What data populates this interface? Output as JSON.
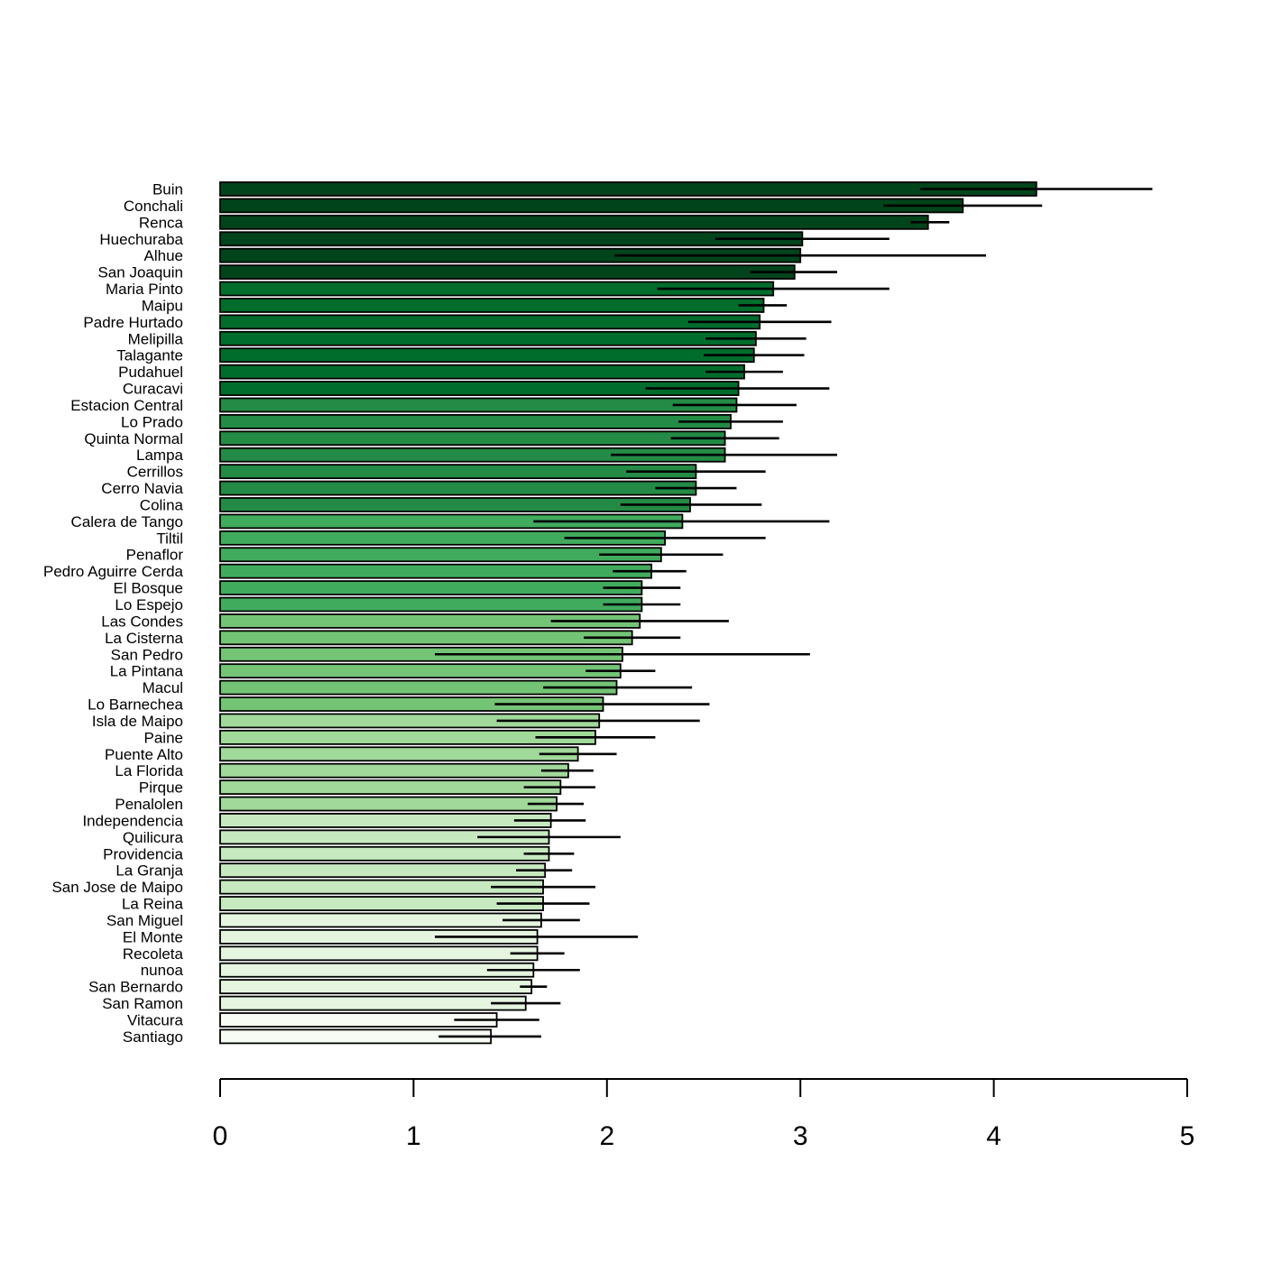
{
  "chart_data": {
    "type": "bar",
    "orientation": "horizontal",
    "title": "",
    "xlabel": "",
    "ylabel": "",
    "xlim": [
      0,
      5
    ],
    "x_ticks": [
      "0",
      "1",
      "2",
      "3",
      "4",
      "5"
    ],
    "grid": false,
    "legend": "none",
    "error_bars": true,
    "categories": [
      "Buin",
      "Conchali",
      "Renca",
      "Huechuraba",
      "Alhue",
      "San Joaquin",
      "Maria Pinto",
      "Maipu",
      "Padre Hurtado",
      "Melipilla",
      "Talagante",
      "Pudahuel",
      "Curacavi",
      "Estacion Central",
      "Lo Prado",
      "Quinta Normal",
      "Lampa",
      "Cerrillos",
      "Cerro Navia",
      "Colina",
      "Calera de Tango",
      "Tiltil",
      "Penaflor",
      "Pedro Aguirre Cerda",
      "El Bosque",
      "Lo Espejo",
      "Las Condes",
      "La Cisterna",
      "San Pedro",
      "La Pintana",
      "Macul",
      "Lo Barnechea",
      "Isla de Maipo",
      "Paine",
      "Puente Alto",
      "La Florida",
      "Pirque",
      "Penalolen",
      "Independencia",
      "Quilicura",
      "Providencia",
      "La Granja",
      "San Jose de Maipo",
      "La Reina",
      "San Miguel",
      "El Monte",
      "Recoleta",
      "nunoa",
      "San Bernardo",
      "San Ramon",
      "Vitacura",
      "Santiago"
    ],
    "values": [
      4.22,
      3.84,
      3.66,
      3.01,
      3.0,
      2.97,
      2.86,
      2.81,
      2.79,
      2.77,
      2.76,
      2.71,
      2.68,
      2.67,
      2.64,
      2.61,
      2.61,
      2.46,
      2.46,
      2.43,
      2.39,
      2.3,
      2.28,
      2.23,
      2.18,
      2.18,
      2.17,
      2.13,
      2.08,
      2.07,
      2.05,
      1.98,
      1.96,
      1.94,
      1.85,
      1.8,
      1.76,
      1.74,
      1.71,
      1.7,
      1.7,
      1.68,
      1.67,
      1.67,
      1.66,
      1.64,
      1.64,
      1.62,
      1.61,
      1.58,
      1.43,
      1.4
    ],
    "ci_low": [
      3.62,
      3.43,
      3.57,
      2.56,
      2.04,
      2.74,
      2.26,
      2.68,
      2.42,
      2.51,
      2.5,
      2.51,
      2.2,
      2.34,
      2.37,
      2.33,
      2.02,
      2.1,
      2.25,
      2.07,
      1.62,
      1.78,
      1.96,
      2.03,
      1.98,
      1.98,
      1.71,
      1.88,
      1.11,
      1.89,
      1.67,
      1.42,
      1.43,
      1.63,
      1.65,
      1.66,
      1.57,
      1.59,
      1.52,
      1.33,
      1.57,
      1.53,
      1.4,
      1.43,
      1.46,
      1.11,
      1.5,
      1.38,
      1.55,
      1.4,
      1.21,
      1.13
    ],
    "ci_high": [
      4.82,
      4.25,
      3.77,
      3.46,
      3.96,
      3.19,
      3.46,
      2.93,
      3.16,
      3.03,
      3.02,
      2.91,
      3.15,
      2.98,
      2.91,
      2.89,
      3.19,
      2.82,
      2.67,
      2.8,
      3.15,
      2.82,
      2.6,
      2.41,
      2.38,
      2.38,
      2.63,
      2.38,
      3.05,
      2.25,
      2.44,
      2.53,
      2.48,
      2.25,
      2.05,
      1.93,
      1.94,
      1.88,
      1.89,
      2.07,
      1.83,
      1.82,
      1.94,
      1.91,
      1.86,
      2.16,
      1.78,
      1.86,
      1.69,
      1.76,
      1.65,
      1.66
    ],
    "color_levels": [
      9,
      9,
      9,
      9,
      9,
      9,
      8,
      8,
      8,
      8,
      8,
      8,
      8,
      7,
      7,
      7,
      7,
      7,
      7,
      7,
      6,
      6,
      6,
      6,
      6,
      6,
      5,
      5,
      5,
      5,
      5,
      5,
      4,
      4,
      4,
      4,
      4,
      4,
      3,
      3,
      3,
      3,
      3,
      3,
      2,
      2,
      2,
      2,
      2,
      2,
      1,
      1
    ],
    "palette": [
      "#f7fcf5",
      "#e5f5e0",
      "#c7e9c0",
      "#a1d99b",
      "#74c476",
      "#41ab5d",
      "#238b45",
      "#006d2c",
      "#00441b"
    ],
    "bar_border_color": "#000000"
  }
}
